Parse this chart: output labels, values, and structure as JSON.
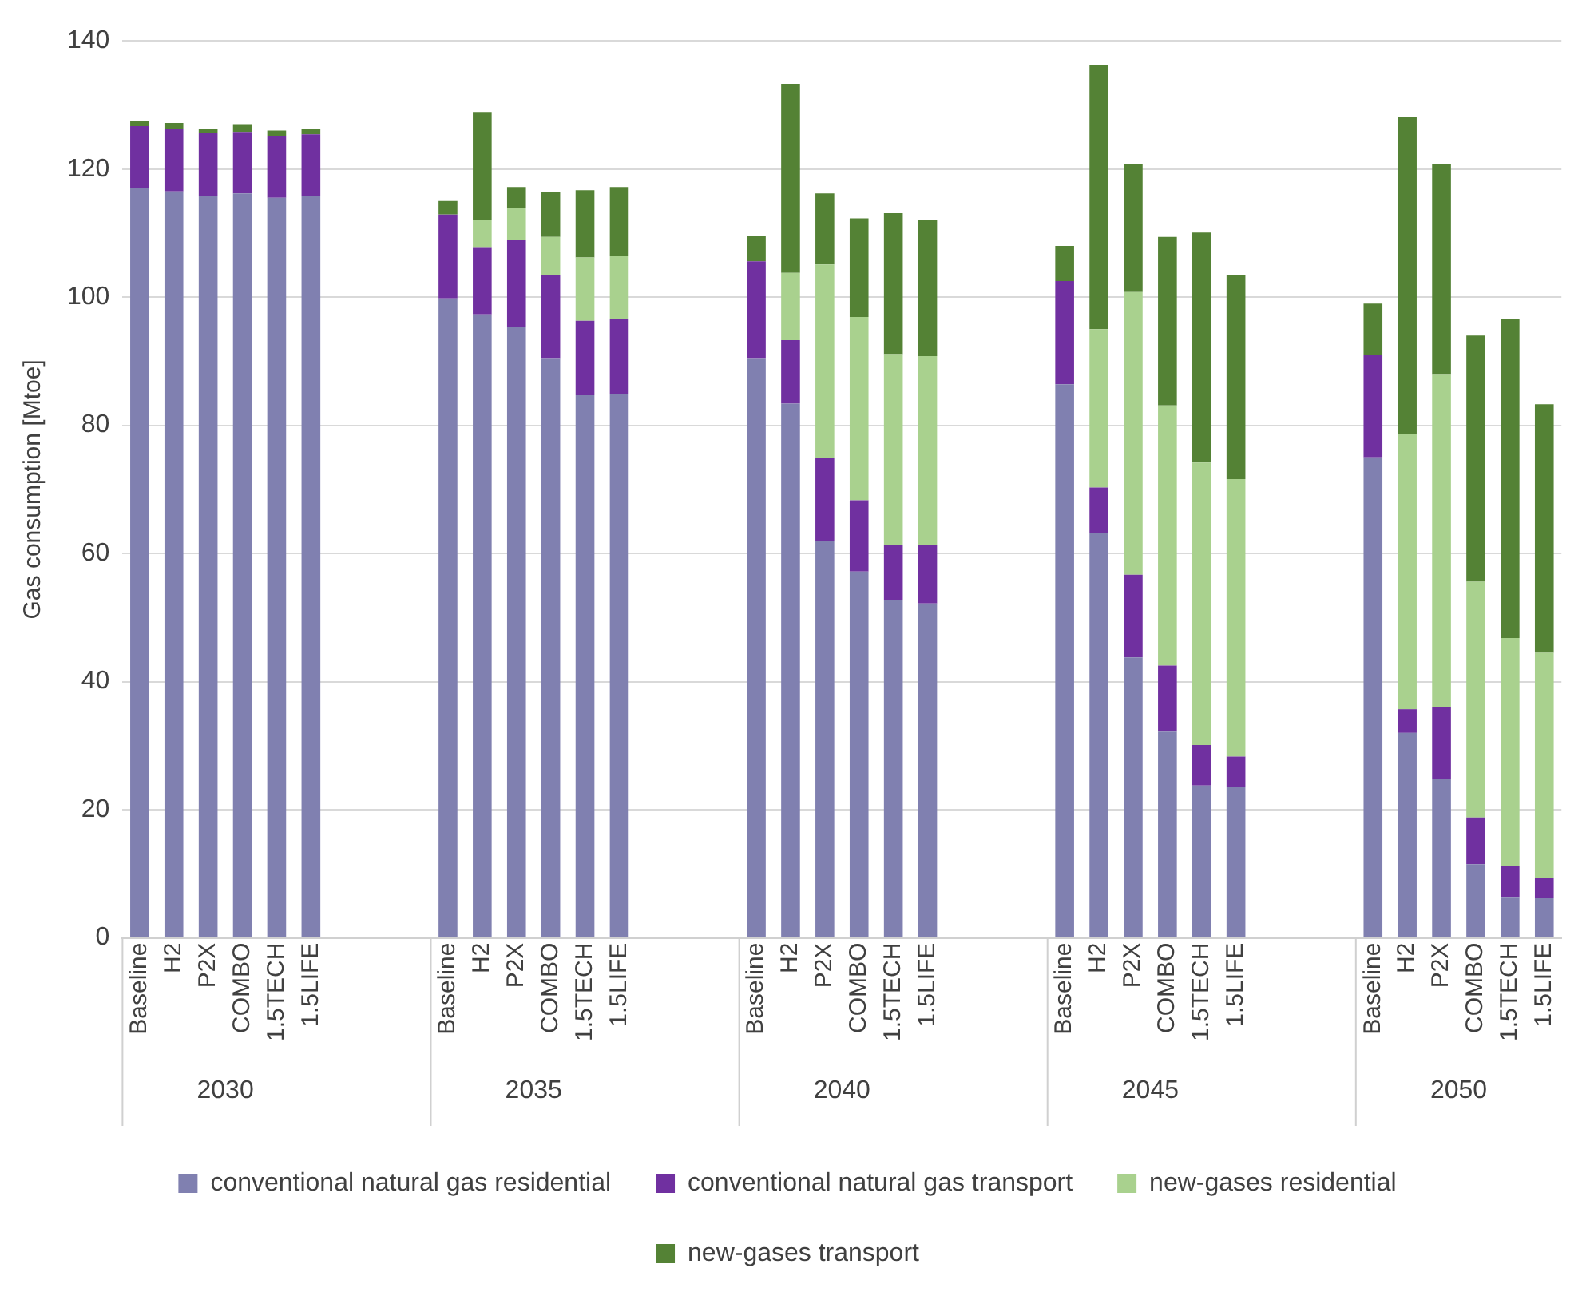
{
  "chart_data": {
    "type": "bar",
    "stacked": true,
    "ylabel": "Gas consumption [Mtoe]",
    "categories": [
      "Baseline",
      "H2",
      "P2X",
      "COMBO",
      "1.5TECH",
      "1.5LIFE",
      null,
      null,
      null,
      "Baseline",
      "H2",
      "P2X",
      "COMBO",
      "1.5TECH",
      "1.5LIFE",
      null,
      null,
      null,
      "Baseline",
      "H2",
      "P2X",
      "COMBO",
      "1.5TECH",
      "1.5LIFE",
      null,
      null,
      null,
      "Baseline",
      "H2",
      "P2X",
      "COMBO",
      "1.5TECH",
      "1.5LIFE",
      null,
      null,
      null,
      "Baseline",
      "H2",
      "P2X",
      "COMBO",
      "1.5TECH",
      "1.5LIFE"
    ],
    "series": [
      {
        "name": "conventional natural gas residential",
        "color": "#8080b0",
        "values": [
          117,
          116.5,
          115.8,
          116.2,
          115.5,
          115.8,
          null,
          null,
          null,
          99.8,
          97.3,
          95.3,
          90.5,
          84.7,
          84.9,
          null,
          null,
          null,
          90.5,
          83.4,
          62,
          57.2,
          52.7,
          52.2,
          null,
          null,
          null,
          86.4,
          63.2,
          43.8,
          32.2,
          23.8,
          23.5,
          null,
          null,
          null,
          75,
          32,
          24.8,
          11.5,
          6.4,
          6.3
        ]
      },
      {
        "name": "conventional natural gas transport",
        "color": "#7030a0",
        "values": [
          9.7,
          9.8,
          9.8,
          9.6,
          9.7,
          9.6,
          null,
          null,
          null,
          13.1,
          10.5,
          13.6,
          12.9,
          11.6,
          11.7,
          null,
          null,
          null,
          15.1,
          9.9,
          12.9,
          11.1,
          8.6,
          9.1,
          null,
          null,
          null,
          16.1,
          7.1,
          12.9,
          10.3,
          6.3,
          4.8,
          null,
          null,
          null,
          16,
          3.7,
          11.2,
          7.3,
          4.8,
          3.1
        ]
      },
      {
        "name": "new-gases residential",
        "color": "#a9d18e",
        "values": [
          0,
          0,
          0,
          0,
          0,
          0,
          null,
          null,
          null,
          0,
          4.2,
          5,
          6,
          9.9,
          9.8,
          null,
          null,
          null,
          0,
          10.5,
          30.2,
          28.6,
          29.8,
          29.5,
          null,
          null,
          null,
          0,
          24.7,
          44.1,
          40.6,
          44.1,
          43.3,
          null,
          null,
          null,
          0,
          43,
          52,
          36.8,
          35.6,
          35.1
        ]
      },
      {
        "name": "new-gases transport",
        "color": "#548235",
        "values": [
          0.8,
          0.9,
          0.7,
          1.2,
          0.8,
          0.9,
          null,
          null,
          null,
          2.1,
          16.9,
          3.3,
          7,
          10.5,
          10.8,
          null,
          null,
          null,
          4,
          29.5,
          11.1,
          15.4,
          22,
          21.3,
          null,
          null,
          null,
          5.5,
          41.3,
          19.9,
          26.3,
          35.9,
          31.8,
          null,
          null,
          null,
          8,
          49.4,
          32.7,
          38.4,
          49.8,
          38.8
        ]
      }
    ],
    "annotations": [
      "2030",
      "2035",
      "2040",
      "2045",
      "2050"
    ],
    "ylim": [
      0,
      140
    ],
    "yticks": [
      0,
      20,
      40,
      60,
      80,
      100,
      120,
      140
    ],
    "grid": "y",
    "legend": "bottom"
  }
}
